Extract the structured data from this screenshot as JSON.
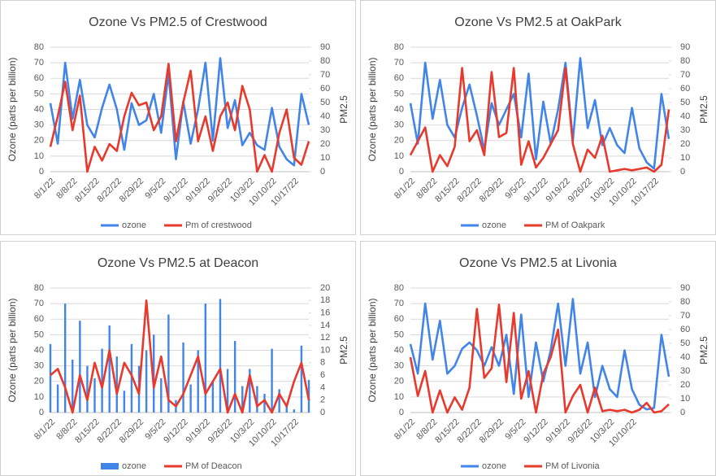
{
  "chart_data": [
    {
      "type": "line",
      "title": "Ozone Vs PM2.5 of Crestwood",
      "y_label": "Ozone (parts per billion)",
      "y2_label": "PM2.5",
      "categories": [
        "8/1/22",
        null,
        null,
        "8/8/22",
        null,
        null,
        "8/15/22",
        null,
        null,
        "8/22/22",
        null,
        null,
        "8/29/22",
        null,
        null,
        "9/5/22",
        null,
        null,
        "9/12/22",
        null,
        null,
        "9/19/22",
        null,
        null,
        "9/26/22",
        null,
        null,
        "10/3/22",
        null,
        null,
        "10/10/22",
        null,
        null,
        "10/17/22",
        null,
        null
      ],
      "series": [
        {
          "name": "ozone",
          "color": "#4285e8",
          "type": "line",
          "values": [
            44,
            18,
            70,
            34,
            59,
            30,
            22,
            41,
            56,
            40,
            14,
            44,
            30,
            33,
            50,
            25,
            63,
            8,
            45,
            18,
            40,
            70,
            20,
            73,
            28,
            46,
            17,
            25,
            17,
            14,
            41,
            16,
            8,
            4,
            50,
            30
          ]
        },
        {
          "name": "Pm of crestwood",
          "color": "#e8392d",
          "type": "line",
          "axis": "y2",
          "values": [
            18,
            40,
            65,
            30,
            55,
            0,
            18,
            8,
            20,
            15,
            40,
            57,
            48,
            50,
            30,
            40,
            78,
            22,
            50,
            73,
            22,
            40,
            15,
            40,
            50,
            30,
            62,
            45,
            0,
            12,
            0,
            28,
            45,
            10,
            5,
            22
          ]
        }
      ],
      "ylim": [
        0,
        80
      ],
      "yticks": [
        0,
        10,
        20,
        30,
        40,
        50,
        60,
        70,
        80
      ],
      "y2lim": [
        0,
        90
      ],
      "y2ticks": [
        0,
        10,
        20,
        30,
        40,
        50,
        60,
        70,
        80,
        90
      ],
      "grid": true,
      "legend": "bottom"
    },
    {
      "type": "line",
      "title": "Ozone Vs PM2.5 at OakPark",
      "y_label": "Ozone (parts per billion)",
      "y2_label": "PM2.5",
      "categories": [
        "8/1/22",
        null,
        null,
        "8/8/22",
        null,
        null,
        "8/15/22",
        null,
        null,
        "8/22/22",
        null,
        null,
        "8/29/22",
        null,
        null,
        "9/5/22",
        null,
        null,
        "9/12/22",
        null,
        null,
        "9/19/22",
        null,
        null,
        "9/26/22",
        null,
        null,
        "10/3/22",
        null,
        null,
        "10/10/22",
        null,
        null,
        "10/17/22",
        null,
        null
      ],
      "series": [
        {
          "name": "ozone",
          "color": "#4285e8",
          "type": "line",
          "values": [
            44,
            18,
            70,
            34,
            59,
            30,
            22,
            41,
            56,
            36,
            14,
            44,
            30,
            40,
            50,
            22,
            63,
            8,
            45,
            18,
            40,
            70,
            20,
            73,
            28,
            46,
            17,
            28,
            17,
            12,
            41,
            15,
            6,
            2,
            50,
            21
          ]
        },
        {
          "name": "PM of  Oakpark",
          "color": "#e8392d",
          "type": "line",
          "axis": "y2",
          "values": [
            12,
            22,
            32,
            0,
            12,
            4,
            18,
            75,
            22,
            30,
            12,
            72,
            25,
            28,
            75,
            5,
            22,
            3,
            10,
            20,
            30,
            75,
            20,
            0,
            16,
            10,
            26,
            0,
            1,
            2,
            1,
            2,
            3,
            0,
            5,
            45
          ]
        }
      ],
      "ylim": [
        0,
        80
      ],
      "yticks": [
        0,
        10,
        20,
        30,
        40,
        50,
        60,
        70,
        80
      ],
      "y2lim": [
        0,
        90
      ],
      "y2ticks": [
        0,
        10,
        20,
        30,
        40,
        50,
        60,
        70,
        80,
        90
      ],
      "grid": true,
      "legend": "bottom"
    },
    {
      "type": "combo",
      "title": "Ozone Vs PM2.5 at Deacon",
      "y_label": "Ozone (parts per billion)",
      "y2_label": "PM2.5",
      "categories": [
        "8/1/22",
        null,
        null,
        "8/8/22",
        null,
        null,
        "8/15/22",
        null,
        null,
        "8/22/22",
        null,
        null,
        "8/29/22",
        null,
        null,
        "9/5/22",
        null,
        null,
        "9/12/22",
        null,
        null,
        "9/19/22",
        null,
        null,
        "9/26/22",
        null,
        null,
        "10/3/22",
        null,
        null,
        "10/10/22",
        null,
        null,
        "10/17/22",
        null,
        null
      ],
      "series": [
        {
          "name": "ozone",
          "color": "#4285e8",
          "type": "bar",
          "values": [
            44,
            18,
            70,
            34,
            59,
            30,
            22,
            41,
            56,
            36,
            14,
            44,
            30,
            40,
            50,
            22,
            63,
            8,
            45,
            18,
            40,
            70,
            20,
            73,
            28,
            46,
            17,
            28,
            17,
            12,
            41,
            15,
            6,
            2,
            43,
            21
          ]
        },
        {
          "name": "PM of Deacon",
          "color": "#e8392d",
          "type": "line",
          "axis": "y2",
          "values": [
            6,
            7,
            4,
            0,
            6,
            2,
            8,
            4,
            10,
            3,
            8,
            6,
            3,
            18,
            4,
            9,
            2,
            1,
            3,
            6,
            9,
            3,
            5,
            7,
            0,
            3,
            0,
            6,
            1,
            2,
            0,
            3,
            1,
            5,
            8,
            2
          ]
        }
      ],
      "ylim": [
        0,
        80
      ],
      "yticks": [
        0,
        10,
        20,
        30,
        40,
        50,
        60,
        70,
        80
      ],
      "y2lim": [
        0,
        20
      ],
      "y2ticks": [
        0,
        2,
        4,
        6,
        8,
        10,
        12,
        14,
        16,
        18,
        20
      ],
      "grid": true,
      "legend": "bottom"
    },
    {
      "type": "line",
      "title": "Ozone Vs PM2.5 at Livonia",
      "y_label": "Ozone (parts per billion)",
      "y2_label": "PM2.5",
      "categories": [
        "8/1/22",
        null,
        null,
        "8/8/22",
        null,
        null,
        "8/15/22",
        null,
        null,
        "8/22/22",
        null,
        null,
        "8/29/22",
        null,
        null,
        "9/5/22",
        null,
        null,
        "9/12/22",
        null,
        null,
        "9/19/22",
        null,
        null,
        "9/26/22",
        null,
        null,
        "10/3/22",
        null,
        null,
        "10/10/22",
        null,
        null,
        null,
        null,
        null
      ],
      "series": [
        {
          "name": "ozone",
          "color": "#4285e8",
          "type": "line",
          "values": [
            44,
            25,
            70,
            34,
            59,
            25,
            30,
            41,
            45,
            40,
            30,
            42,
            30,
            50,
            12,
            63,
            10,
            45,
            20,
            40,
            70,
            30,
            73,
            25,
            45,
            10,
            30,
            15,
            10,
            40,
            15,
            5,
            2,
            3,
            50,
            23
          ]
        },
        {
          "name": "PM of Livonia",
          "color": "#e8392d",
          "type": "line",
          "axis": "y2",
          "values": [
            40,
            12,
            30,
            0,
            16,
            0,
            11,
            2,
            18,
            75,
            25,
            32,
            78,
            22,
            72,
            10,
            30,
            0,
            28,
            40,
            60,
            0,
            12,
            20,
            0,
            18,
            1,
            2,
            1,
            2,
            0,
            2,
            7,
            0,
            1,
            6
          ]
        }
      ],
      "ylim": [
        0,
        80
      ],
      "yticks": [
        0,
        10,
        20,
        30,
        40,
        50,
        60,
        70,
        80
      ],
      "y2lim": [
        0,
        90
      ],
      "y2ticks": [
        0,
        10,
        20,
        30,
        40,
        50,
        60,
        70,
        80,
        90
      ],
      "grid": true,
      "legend": "bottom"
    }
  ]
}
